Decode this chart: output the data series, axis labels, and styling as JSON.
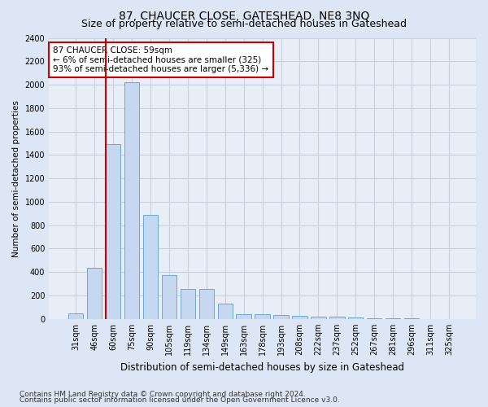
{
  "title": "87, CHAUCER CLOSE, GATESHEAD, NE8 3NQ",
  "subtitle": "Size of property relative to semi-detached houses in Gateshead",
  "xlabel": "Distribution of semi-detached houses by size in Gateshead",
  "ylabel": "Number of semi-detached properties",
  "categories": [
    "31sqm",
    "46sqm",
    "60sqm",
    "75sqm",
    "90sqm",
    "105sqm",
    "119sqm",
    "134sqm",
    "149sqm",
    "163sqm",
    "178sqm",
    "193sqm",
    "208sqm",
    "222sqm",
    "237sqm",
    "252sqm",
    "267sqm",
    "281sqm",
    "296sqm",
    "311sqm",
    "325sqm"
  ],
  "bar_values": [
    45,
    435,
    1490,
    2020,
    885,
    375,
    258,
    258,
    130,
    42,
    42,
    30,
    25,
    20,
    18,
    10,
    8,
    5,
    3,
    2,
    2
  ],
  "bar_color": "#c5d8f0",
  "bar_edge_color": "#6aaad4",
  "vline_index": 2,
  "vline_color": "#cc0000",
  "ylim": [
    0,
    2400
  ],
  "yticks": [
    0,
    200,
    400,
    600,
    800,
    1000,
    1200,
    1400,
    1600,
    1800,
    2000,
    2200,
    2400
  ],
  "annotation_title": "87 CHAUCER CLOSE: 59sqm",
  "annotation_line1": "← 6% of semi-detached houses are smaller (325)",
  "annotation_line2": "93% of semi-detached houses are larger (5,336) →",
  "annotation_box_color": "#ffffff",
  "annotation_edge_color": "#cc0000",
  "footer_line1": "Contains HM Land Registry data © Crown copyright and database right 2024.",
  "footer_line2": "Contains public sector information licensed under the Open Government Licence v3.0.",
  "fig_bg_color": "#dce6f5",
  "plot_bg_color": "#e8eef8",
  "grid_color": "#c8d0e0",
  "title_fontsize": 10,
  "subtitle_fontsize": 9,
  "xlabel_fontsize": 8.5,
  "ylabel_fontsize": 7.5,
  "tick_fontsize": 7,
  "annotation_fontsize": 7.5,
  "footer_fontsize": 6.5
}
